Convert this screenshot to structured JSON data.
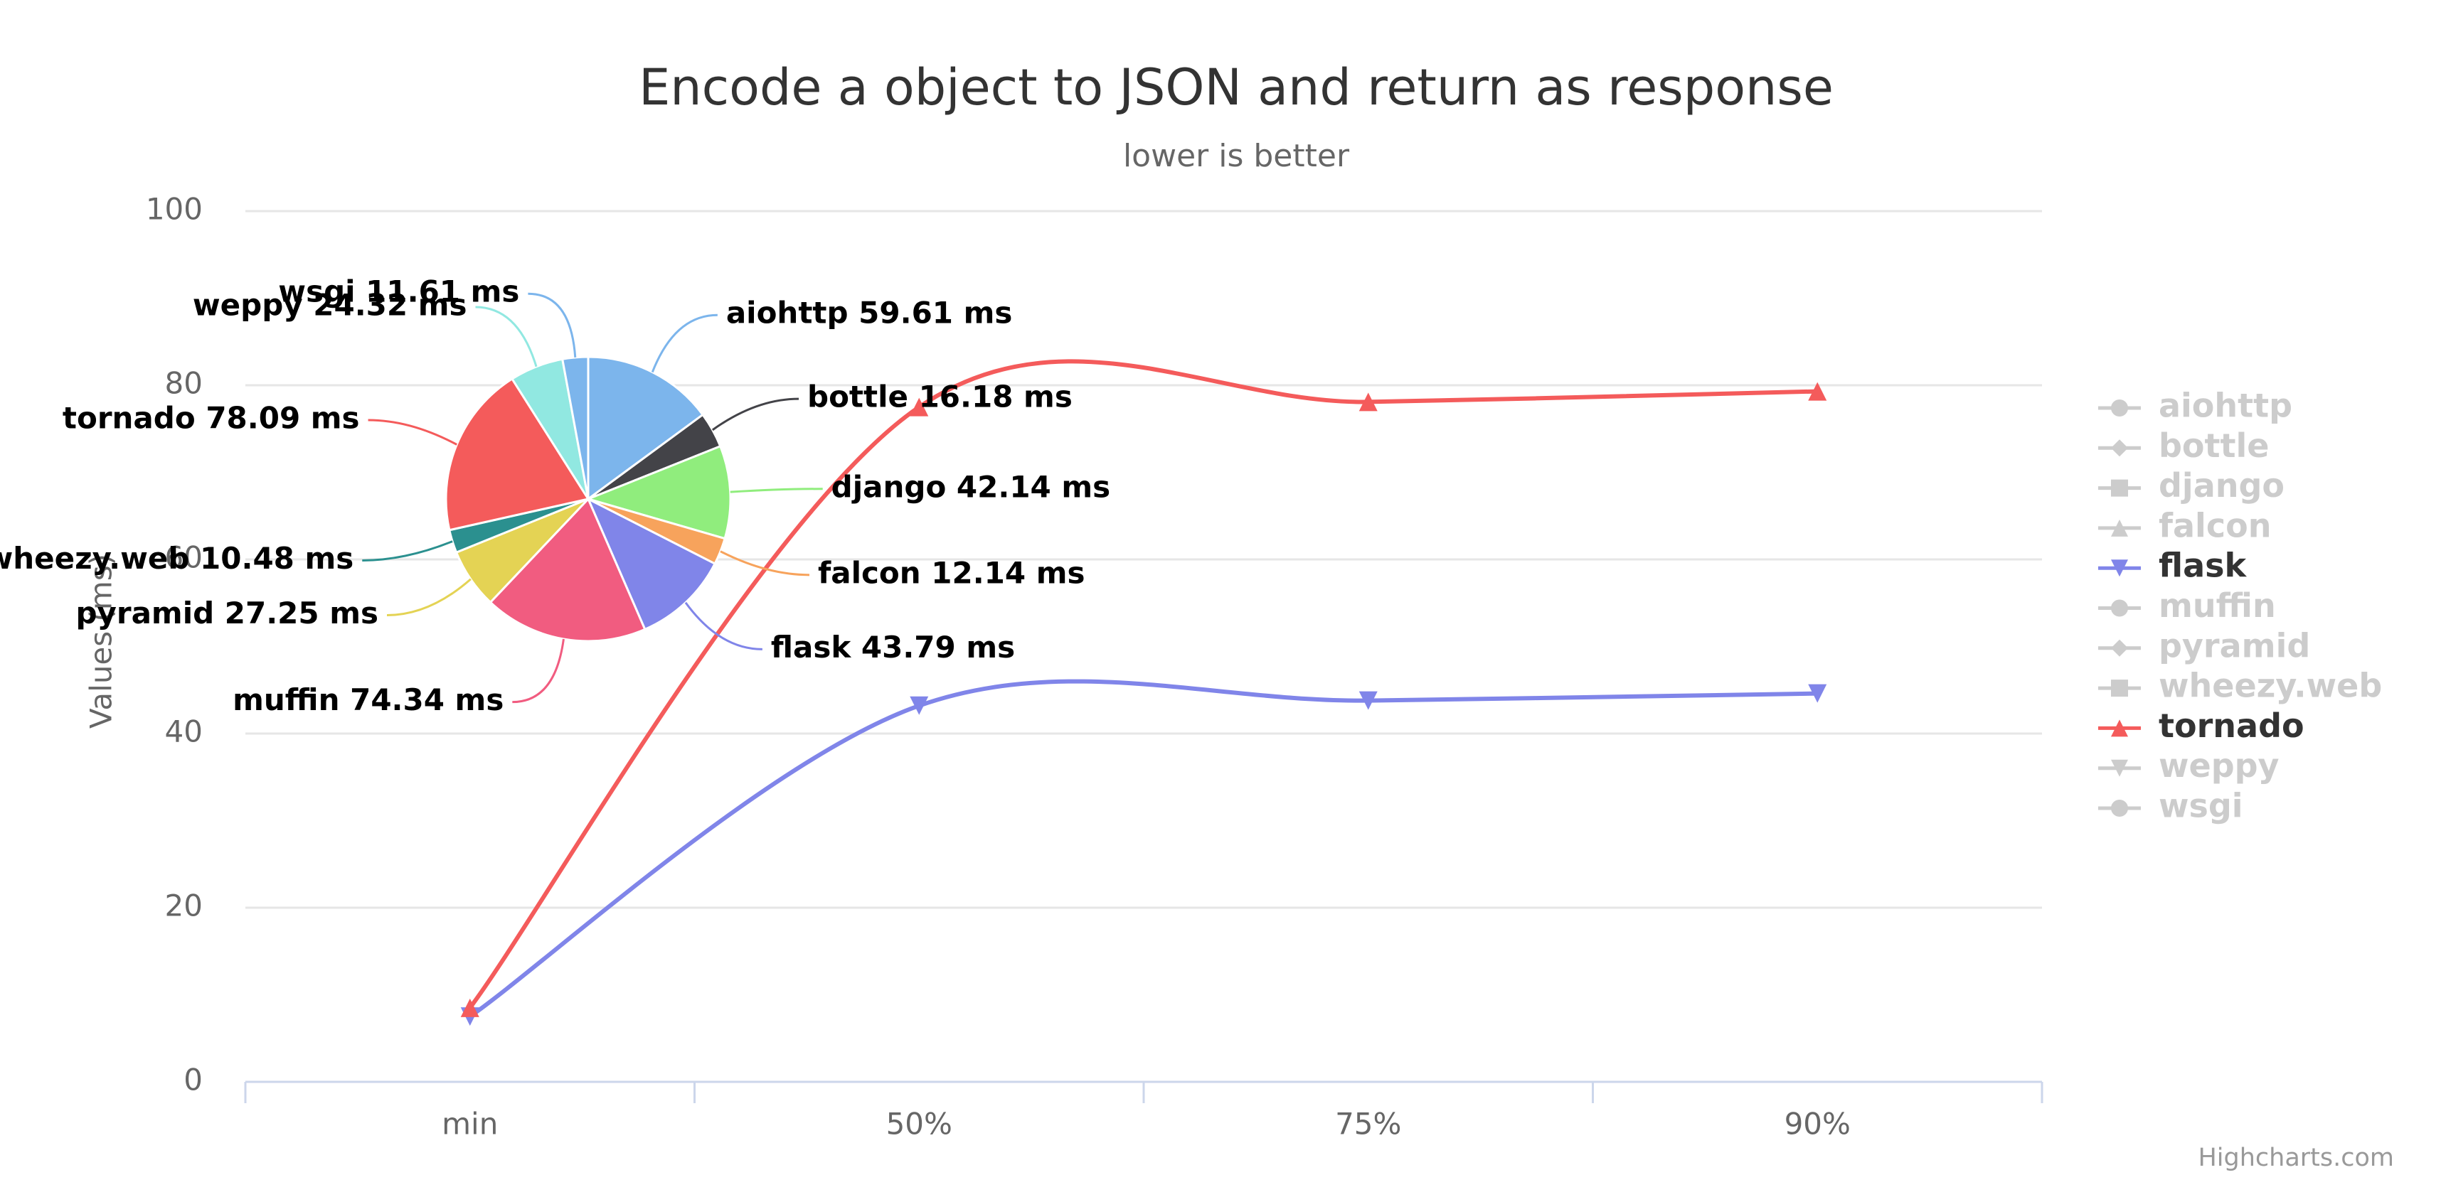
{
  "chart_data": [
    {
      "type": "line",
      "title": "Encode a object to JSON and return as response",
      "subtitle": "lower is better",
      "y_axis_label": "Values (ms)",
      "categories": [
        "min",
        "50%",
        "75%",
        "90%"
      ],
      "ylim": [
        0,
        100
      ],
      "yticks": [
        0,
        20,
        40,
        60,
        80,
        100
      ],
      "grid": true,
      "legend": "right",
      "hidden_color": "#cccccc",
      "series": [
        {
          "name": "aiohttp",
          "color": "#7cb5ec",
          "marker": "circle",
          "visible": false
        },
        {
          "name": "bottle",
          "color": "#434348",
          "marker": "diamond",
          "visible": false
        },
        {
          "name": "django",
          "color": "#90ed7d",
          "marker": "square",
          "visible": false
        },
        {
          "name": "falcon",
          "color": "#f7a35c",
          "marker": "triangle",
          "visible": false
        },
        {
          "name": "flask",
          "color": "#8085e9",
          "marker": "triangle-down",
          "visible": true,
          "values": [
            7.5,
            43.2,
            43.79,
            44.6
          ]
        },
        {
          "name": "muffin",
          "color": "#f15c80",
          "marker": "circle",
          "visible": false
        },
        {
          "name": "pyramid",
          "color": "#e4d354",
          "marker": "diamond",
          "visible": false
        },
        {
          "name": "wheezy.web",
          "color": "#2b908f",
          "marker": "square",
          "visible": false
        },
        {
          "name": "tornado",
          "color": "#f45b5b",
          "marker": "triangle",
          "visible": true,
          "values": [
            8.5,
            77.5,
            78.09,
            79.3
          ]
        },
        {
          "name": "weppy",
          "color": "#91e8e1",
          "marker": "triangle-down",
          "visible": false
        },
        {
          "name": "wsgi",
          "color": "#7cb5ec",
          "marker": "circle",
          "visible": false
        }
      ]
    },
    {
      "type": "pie",
      "values": [
        59.61,
        16.18,
        42.14,
        12.14,
        43.79,
        74.34,
        27.25,
        10.48,
        78.09,
        24.32,
        11.61
      ],
      "value_labels": [
        "aiohttp 59.61 ms",
        "bottle 16.18 ms",
        "django 42.14 ms",
        "falcon 12.14 ms",
        "flask 43.79 ms",
        "muffin 74.34 ms",
        "pyramid 27.25 ms",
        "wheezy.web 10.48 ms",
        "tornado 78.09 ms",
        "weppy 24.32 ms",
        "wsgi 11.61 ms"
      ],
      "colors": [
        "#7cb5ec",
        "#434348",
        "#90ed7d",
        "#f7a35c",
        "#8085e9",
        "#f15c80",
        "#e4d354",
        "#2b908f",
        "#f45b5b",
        "#91e8e1",
        "#7cb5ec"
      ]
    }
  ],
  "credits": "Highcharts.com"
}
